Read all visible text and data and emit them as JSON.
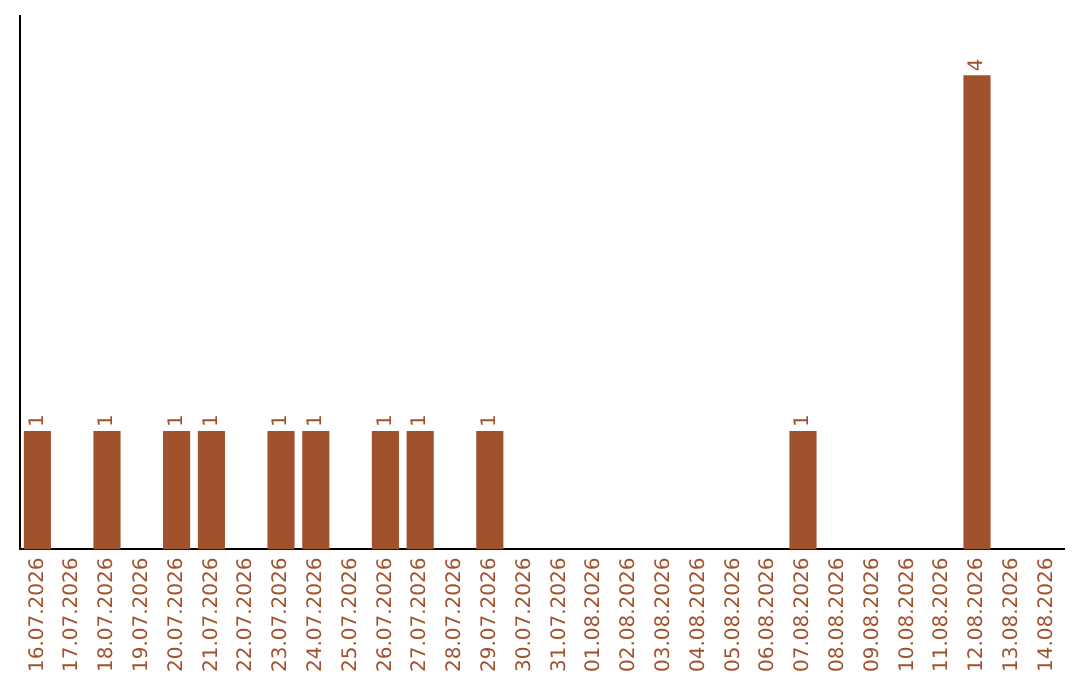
{
  "chart_data": {
    "type": "bar",
    "categories": [
      "16.07.2026",
      "17.07.2026",
      "18.07.2026",
      "19.07.2026",
      "20.07.2026",
      "21.07.2026",
      "22.07.2026",
      "23.07.2026",
      "24.07.2026",
      "25.07.2026",
      "26.07.2026",
      "27.07.2026",
      "28.07.2026",
      "29.07.2026",
      "30.07.2026",
      "31.07.2026",
      "01.08.2026",
      "02.08.2026",
      "03.08.2026",
      "04.08.2026",
      "05.08.2026",
      "06.08.2026",
      "07.08.2026",
      "08.08.2026",
      "09.08.2026",
      "10.08.2026",
      "11.08.2026",
      "12.08.2026",
      "13.08.2026",
      "14.08.2026"
    ],
    "values": [
      1,
      null,
      1,
      null,
      1,
      1,
      null,
      1,
      1,
      null,
      1,
      1,
      null,
      1,
      null,
      null,
      null,
      null,
      null,
      null,
      null,
      null,
      1,
      null,
      null,
      null,
      null,
      4,
      null,
      null
    ],
    "color": "#a0522d",
    "data_labels": true,
    "grid": false,
    "legend": false,
    "tick_labels": "x"
  }
}
